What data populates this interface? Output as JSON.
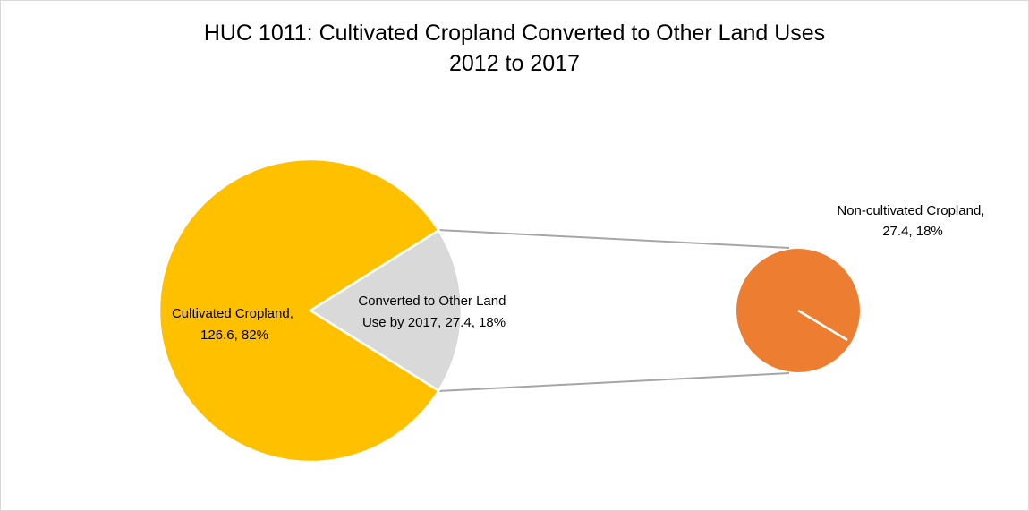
{
  "chart_data": {
    "type": "pie",
    "subtype": "pie-of-pie",
    "title_line1": "HUC 1011: Cultivated Cropland Converted to Other Land Uses",
    "title_line2": "2012 to 2017",
    "main_pie": {
      "slices": [
        {
          "label_line1": "Cultivated Cropland,",
          "label_line2": "126.6, 82%",
          "value": 126.6,
          "percent": 82,
          "color": "#FFC000"
        },
        {
          "label_line1": "Converted to Other Land",
          "label_line2": "Use by 2017, 27.4, 18%",
          "value": 27.4,
          "percent": 18,
          "color": "#D9D9D9"
        }
      ]
    },
    "secondary_pie": {
      "slices": [
        {
          "label_line1": "Non-cultivated Cropland,",
          "label_line2": "27.4, 18%",
          "value": 27.4,
          "percent": 18,
          "color": "#ED7D31"
        }
      ]
    },
    "connector_color": "#A6A6A6",
    "slice_border_color": "#FFFFFF"
  }
}
